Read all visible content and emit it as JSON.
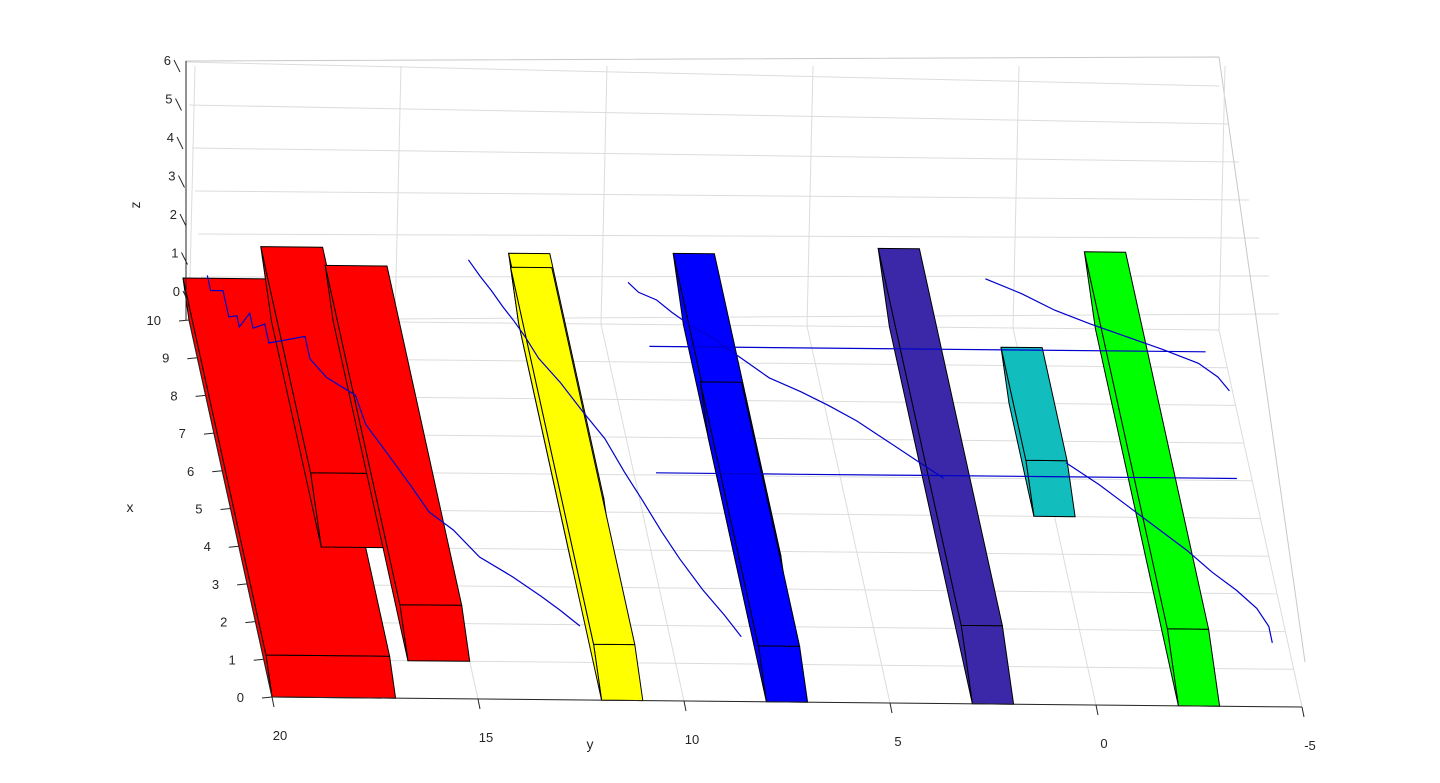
{
  "chart_data": {
    "type": "3d-box-plot",
    "xlabel": "x",
    "ylabel": "y",
    "zlabel": "z",
    "x_ticks": [
      "0",
      "1",
      "2",
      "3",
      "4",
      "5",
      "6",
      "7",
      "8",
      "9",
      "10"
    ],
    "y_ticks": [
      "20",
      "15",
      "10",
      "5",
      "0",
      "-5"
    ],
    "z_ticks": [
      "0",
      "1",
      "2",
      "3",
      "4",
      "5",
      "6"
    ],
    "xlim": [
      0,
      10
    ],
    "ylim": [
      -5,
      20
    ],
    "zlim": [
      0,
      6
    ],
    "grid": true,
    "colors": {
      "red": "#ff0000",
      "yellow": "#ffff00",
      "blue": "#0000ff",
      "indigo": "#3a28a8",
      "cyan": "#12bdbd",
      "green": "#00ff00",
      "path": "#0000cc"
    },
    "boxes": [
      {
        "color": "red",
        "x": [
          0,
          10
        ],
        "y": [
          17,
          20
        ],
        "z": [
          0,
          3
        ]
      },
      {
        "color": "red",
        "x": [
          4,
          10
        ],
        "y": [
          16.5,
          18
        ],
        "z": [
          0,
          5.3
        ]
      },
      {
        "color": "red",
        "x": [
          1,
          10
        ],
        "y": [
          15,
          16.5
        ],
        "z": [
          0,
          4
        ]
      },
      {
        "color": "yellow",
        "x": [
          3.5,
          10
        ],
        "y": [
          11,
          12
        ],
        "z": [
          0,
          5
        ]
      },
      {
        "color": "yellow",
        "x": [
          0,
          10
        ],
        "y": [
          11,
          12
        ],
        "z": [
          0,
          4
        ]
      },
      {
        "color": "blue",
        "x": [
          2,
          10
        ],
        "y": [
          7,
          8
        ],
        "z": [
          0,
          5.1
        ]
      },
      {
        "color": "blue",
        "x": [
          0,
          7
        ],
        "y": [
          7,
          8
        ],
        "z": [
          0,
          4
        ]
      },
      {
        "color": "indigo",
        "x": [
          0,
          10
        ],
        "y": [
          2,
          3
        ],
        "z": [
          0,
          5.6
        ]
      },
      {
        "color": "cyan",
        "x": [
          5,
          8
        ],
        "y": [
          -0.5,
          0.5
        ],
        "z": [
          0,
          4
        ]
      },
      {
        "color": "green",
        "x": [
          0,
          10
        ],
        "y": [
          -3,
          -2
        ],
        "z": [
          0,
          5.5
        ]
      }
    ],
    "path_segments": [
      [
        [
          10,
          19.4,
          3.2
        ],
        [
          9.6,
          19.4,
          3.2
        ],
        [
          9.6,
          19.1,
          3.2
        ],
        [
          8.9,
          19.1,
          3.2
        ],
        [
          8.9,
          18.9,
          3.3
        ],
        [
          8.6,
          18.9,
          3.3
        ],
        [
          8.6,
          18.6,
          4.3
        ],
        [
          8.2,
          18.6,
          4.3
        ],
        [
          8.2,
          18.3,
          4.6
        ],
        [
          7.7,
          18.3,
          4.6
        ],
        [
          7.7,
          17.4,
          5.1
        ],
        [
          7.1,
          17.4,
          5.1
        ],
        [
          6.5,
          17.1,
          5.4
        ],
        [
          6.0,
          16.5,
          5.5
        ],
        [
          5.3,
          16.4,
          5.3
        ],
        [
          4.6,
          16.0,
          5.0
        ],
        [
          4.0,
          15.6,
          4.4
        ],
        [
          3.4,
          15.3,
          4.2
        ],
        [
          3.0,
          14.8,
          4.0
        ],
        [
          2.4,
          14.3,
          3.7
        ],
        [
          2.0,
          13.6,
          3.4
        ],
        [
          1.6,
          13.0,
          3.1
        ],
        [
          1.3,
          12.6,
          2.9
        ],
        [
          1.0,
          12.2,
          2.6
        ]
      ],
      [
        [
          10,
          13.0,
          4.5
        ],
        [
          9.6,
          12.8,
          4.4
        ],
        [
          9.3,
          12.6,
          4.2
        ],
        [
          8.9,
          12.4,
          4.1
        ],
        [
          8.6,
          12.2,
          3.9
        ],
        [
          8.2,
          12.0,
          3.8
        ],
        [
          7.7,
          11.8,
          3.7
        ],
        [
          7.1,
          11.4,
          3.6
        ],
        [
          6.4,
          11.0,
          3.4
        ],
        [
          5.8,
          10.6,
          3.1
        ],
        [
          5.0,
          10.3,
          2.9
        ],
        [
          4.3,
          10.0,
          2.7
        ],
        [
          3.6,
          9.7,
          2.4
        ],
        [
          3.0,
          9.4,
          2.1
        ],
        [
          2.3,
          9.0,
          1.8
        ],
        [
          1.7,
          8.6,
          1.6
        ],
        [
          1.2,
          8.3,
          1.4
        ]
      ],
      [
        [
          10,
          9.2,
          3.0
        ],
        [
          9.7,
          9.0,
          3.1
        ],
        [
          9.5,
          8.6,
          3.1
        ],
        [
          9.1,
          8.3,
          3.3
        ],
        [
          8.7,
          7.9,
          3.4
        ],
        [
          8.4,
          7.5,
          3.5
        ],
        [
          8.0,
          7.1,
          3.6
        ],
        [
          7.6,
          6.7,
          3.7
        ],
        [
          7.2,
          6.3,
          3.8
        ],
        [
          6.8,
          5.6,
          3.9
        ],
        [
          6.4,
          5.0,
          4.0
        ],
        [
          6.0,
          4.4,
          4.0
        ],
        [
          5.5,
          3.8,
          4.0
        ],
        [
          5.0,
          3.2,
          4.0
        ],
        [
          4.5,
          2.6,
          4.0
        ]
      ],
      [
        [
          10,
          0.5,
          3.5
        ],
        [
          9.5,
          -0.3,
          3.8
        ],
        [
          9.0,
          -1.0,
          4.0
        ],
        [
          8.6,
          -1.8,
          4.1
        ],
        [
          8.2,
          -2.6,
          4.3
        ],
        [
          7.8,
          -3.4,
          4.5
        ],
        [
          7.4,
          -4.2,
          4.6
        ],
        [
          7.0,
          -4.6,
          4.7
        ],
        [
          6.6,
          -4.8,
          4.8
        ]
      ],
      [
        [
          5.5,
          -0.5,
          2.5
        ],
        [
          5.0,
          -1.2,
          2.3
        ],
        [
          4.5,
          -1.8,
          2.1
        ],
        [
          4.0,
          -2.4,
          1.9
        ],
        [
          3.5,
          -3.0,
          1.7
        ],
        [
          3.0,
          -3.5,
          1.5
        ],
        [
          2.6,
          -4.0,
          1.3
        ],
        [
          2.2,
          -4.4,
          1.1
        ],
        [
          1.8,
          -4.6,
          0.9
        ],
        [
          1.4,
          -4.6,
          0.8
        ]
      ],
      [
        [
          5.5,
          9.5,
          1.5
        ],
        [
          5.5,
          6.0,
          1.5
        ],
        [
          5.5,
          3.0,
          1.5
        ],
        [
          5.5,
          0.0,
          1.5
        ],
        [
          5.5,
          -3.0,
          1.5
        ],
        [
          5.5,
          -4.6,
          1.5
        ]
      ],
      [
        [
          8.6,
          9.0,
          2.2
        ],
        [
          8.6,
          6.0,
          2.2
        ],
        [
          8.6,
          3.0,
          2.2
        ],
        [
          8.6,
          0.0,
          2.2
        ],
        [
          8.6,
          -3.0,
          2.2
        ],
        [
          8.6,
          -4.5,
          2.2
        ]
      ]
    ]
  }
}
